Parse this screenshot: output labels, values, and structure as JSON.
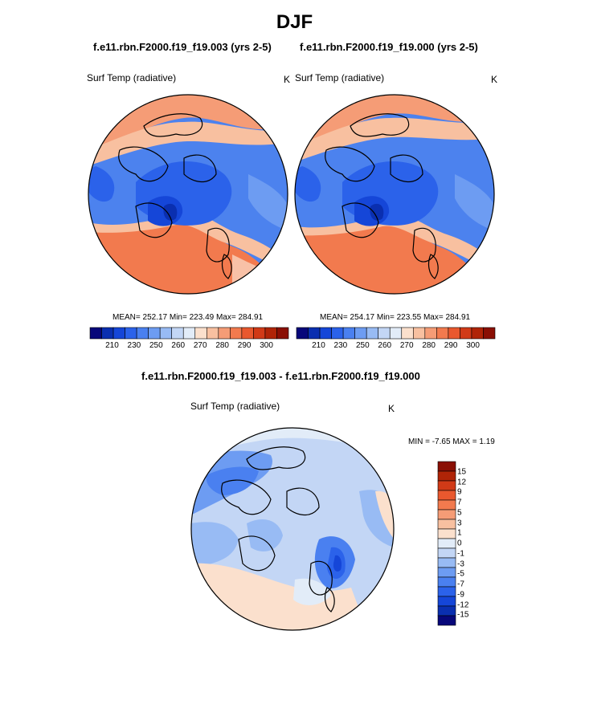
{
  "title": "DJF",
  "panels": [
    {
      "case_label": "f.e11.rbn.F2000.f19_f19.003 (yrs 2-5)",
      "variable": "Surf Temp (radiative)",
      "units": "K",
      "stats": "MEAN= 252.17  Min= 223.49  Max= 284.91"
    },
    {
      "case_label": "f.e11.rbn.F2000.f19_f19.000 (yrs 2-5)",
      "variable": "Surf Temp (radiative)",
      "units": "K",
      "stats": "MEAN= 254.17  Min= 223.55  Max= 284.91"
    }
  ],
  "abs_colorbar": {
    "colors": [
      "#07077a",
      "#0a2fb0",
      "#1546d8",
      "#2b62ea",
      "#4a80f0",
      "#6d9cf2",
      "#98bbf4",
      "#c3d6f5",
      "#e2ecf8",
      "#fbe0cd",
      "#f8c0a0",
      "#f59c76",
      "#f27a4e",
      "#e9582e",
      "#d13a17",
      "#b02407",
      "#8a0f04"
    ],
    "ticks": [
      "210",
      "230",
      "250",
      "260",
      "270",
      "280",
      "290",
      "300"
    ]
  },
  "diff": {
    "title": "f.e11.rbn.F2000.f19_f19.003 - f.e11.rbn.F2000.f19_f19.000",
    "variable": "Surf Temp (radiative)",
    "units": "K",
    "minmax": "MIN =  -7.65 MAX =   1.19",
    "colors": [
      "#8a0f04",
      "#b02407",
      "#d13a17",
      "#e9582e",
      "#f27a4e",
      "#f59c76",
      "#f8c0a0",
      "#fbe0cd",
      "#e2ecf8",
      "#c3d6f5",
      "#98bbf4",
      "#6d9cf2",
      "#4a80f0",
      "#2b62ea",
      "#1546d8",
      "#0a2fb0",
      "#07077a"
    ],
    "ticks": [
      "15",
      "12",
      "9",
      "7",
      "5",
      "3",
      "1",
      "0",
      "-1",
      "-3",
      "-5",
      "-7",
      "-9",
      "-12",
      "-15"
    ]
  }
}
